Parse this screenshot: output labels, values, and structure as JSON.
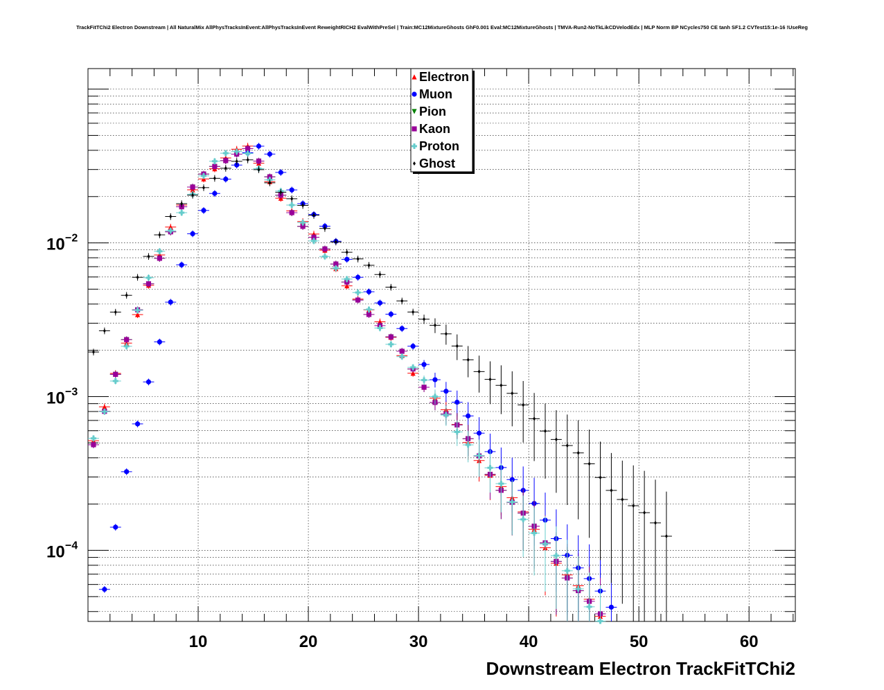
{
  "title": "TrackFitTChi2 Electron Downstream | All NaturalMix AllPhysTracksInEvent:AllPhysTracksInEvent ReweightRICH2 EvalWithPreSel | Train:MC12MixtureGhosts GhF0.001 Eval:MC12MixtureGhosts | TMVA-Run2-NoTkLikCDVelodEdx | MLP Norm BP NCycles750 CE tanh SF1.2 CVTest15:1e-16 !UseReg",
  "chart_data": {
    "type": "scatter",
    "title": "TrackFitTChi2 Electron Downstream | All NaturalMix AllPhysTracksInEvent:AllPhysTracksInEvent ReweightRICH2 EvalWithPreSel | Train:MC12MixtureGhosts GhF0.001 Eval:MC12MixtureGhosts | TMVA-Run2-NoTkLikCDVelodEdx | MLP Norm BP NCycles750 CE tanh SF1.2 CVTest15:1e-16 !UseReg",
    "xlabel": "Downstream Electron TrackFitTChi2",
    "ylabel": "",
    "xlim": [
      0,
      64.2
    ],
    "ylim": [
      3.45e-05,
      0.136
    ],
    "yscale": "log",
    "grid": true,
    "legend_position": "top-center",
    "x_ticks": [
      "10",
      "20",
      "30",
      "40",
      "50",
      "60"
    ],
    "y_ticks": [
      {
        "base": "10",
        "exp": "−2",
        "value": 0.01
      },
      {
        "base": "10",
        "exp": "−3",
        "value": 0.001
      },
      {
        "base": "10",
        "exp": "−4",
        "value": 0.0001
      }
    ],
    "series": [
      {
        "name": "Electron",
        "color": "#ff0000",
        "marker": "triangle-up",
        "profile": "electron"
      },
      {
        "name": "Muon",
        "color": "#0000ff",
        "marker": "circle",
        "profile": "muon"
      },
      {
        "name": "Pion",
        "color": "#008000",
        "marker": "triangle-down",
        "profile": "pion"
      },
      {
        "name": "Kaon",
        "color": "#990099",
        "marker": "square",
        "profile": "kaon"
      },
      {
        "name": "Proton",
        "color": "#66cccc",
        "marker": "cross",
        "profile": "proton"
      },
      {
        "name": "Ghost",
        "color": "#000000",
        "marker": "diamond",
        "profile": "ghost"
      }
    ]
  }
}
